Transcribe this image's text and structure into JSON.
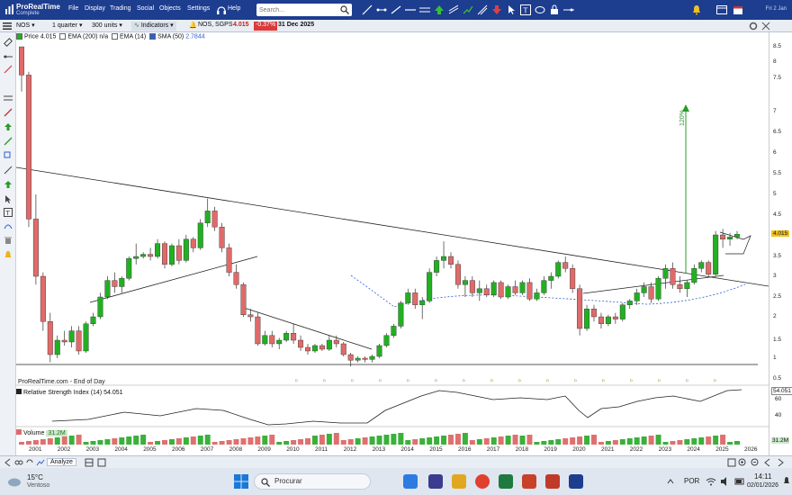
{
  "app": {
    "name": "ProRealTime",
    "edition": "Complete"
  },
  "menu": [
    "File",
    "Display",
    "Trading",
    "Social",
    "Objects",
    "Settings",
    "Help"
  ],
  "search": {
    "placeholder": "Search..."
  },
  "top_date": "Fri 2 Jan",
  "toolbar": {
    "ticker": "NOS",
    "period": "1 quarter",
    "units": "300 units",
    "indicators_label": "Indicators",
    "symbol": "NOS, SGPS",
    "price": "4.015",
    "change": "-0.37%",
    "date": "31 Dec 2025"
  },
  "legend": {
    "price_label": "Price",
    "price": "4.015",
    "ema200_label": "EMA (200)",
    "ema200": "n/a",
    "ema14_label": "EMA (14)",
    "sma50_label": "SMA (50)",
    "sma50": "2.7844"
  },
  "colors": {
    "up": "#22b022",
    "down": "#e06a6a",
    "accent": "#1d3d8f",
    "sma": "#2a5fd0",
    "rsi": "#222222"
  },
  "annotation": "120%",
  "source_text": "ProRealTime.com - End of Day",
  "rsi_label": "Relative Strength Index (14)",
  "rsi_value": "54.051",
  "rsi_axis": [
    "60",
    "40"
  ],
  "volume_label": "Volume",
  "volume_value": "31.2M",
  "status_tab": "Analyze",
  "price_axis": [
    "8.5",
    "8",
    "7.5",
    "7",
    "6.5",
    "6",
    "5.5",
    "5",
    "4.5",
    "4",
    "3.5",
    "3",
    "2.5",
    "2",
    "1.5",
    "1",
    "0.5"
  ],
  "price_tag": "4.015",
  "years": [
    "2001",
    "2002",
    "2003",
    "2004",
    "2005",
    "2006",
    "2007",
    "2008",
    "2009",
    "2010",
    "2011",
    "2012",
    "2013",
    "2014",
    "2015",
    "2016",
    "2017",
    "2018",
    "2019",
    "2020",
    "2021",
    "2022",
    "2023",
    "2024",
    "2025",
    "2026"
  ],
  "weather": {
    "temp": "15°C",
    "desc": "Ventoso"
  },
  "taskbar": {
    "search": "Procurar",
    "lang": "POR",
    "time": "14:11",
    "date": "02/01/2026"
  },
  "chart_data": {
    "type": "candlestick",
    "period": "quarterly",
    "series": [
      {
        "q": "2000Q4",
        "o": 8.8,
        "h": 9.0,
        "l": 7.3,
        "c": 7.6
      },
      {
        "q": "2001Q1",
        "o": 7.6,
        "h": 7.7,
        "l": 4.2,
        "c": 4.4
      },
      {
        "q": "2001Q2",
        "o": 4.4,
        "h": 5.0,
        "l": 2.8,
        "c": 3.0
      },
      {
        "q": "2001Q3",
        "o": 3.0,
        "h": 3.1,
        "l": 1.7,
        "c": 1.9
      },
      {
        "q": "2001Q4",
        "o": 1.9,
        "h": 2.1,
        "l": 0.9,
        "c": 1.1
      },
      {
        "q": "2002Q1",
        "o": 1.1,
        "h": 1.6,
        "l": 1.0,
        "c": 1.5
      },
      {
        "q": "2002Q2",
        "o": 1.5,
        "h": 1.7,
        "l": 1.35,
        "c": 1.45
      },
      {
        "q": "2002Q3",
        "o": 1.45,
        "h": 1.8,
        "l": 1.3,
        "c": 1.7
      },
      {
        "q": "2002Q4",
        "o": 1.7,
        "h": 1.8,
        "l": 1.1,
        "c": 1.2
      },
      {
        "q": "2003Q1",
        "o": 1.2,
        "h": 1.9,
        "l": 1.15,
        "c": 1.85
      },
      {
        "q": "2003Q2",
        "o": 1.85,
        "h": 2.1,
        "l": 1.8,
        "c": 2.0
      },
      {
        "q": "2003Q3",
        "o": 2.0,
        "h": 2.6,
        "l": 1.95,
        "c": 2.5
      },
      {
        "q": "2003Q4",
        "o": 2.5,
        "h": 3.0,
        "l": 2.45,
        "c": 2.9
      },
      {
        "q": "2004Q1",
        "o": 2.9,
        "h": 3.1,
        "l": 2.6,
        "c": 2.75
      },
      {
        "q": "2004Q2",
        "o": 2.75,
        "h": 3.0,
        "l": 2.6,
        "c": 2.95
      },
      {
        "q": "2004Q3",
        "o": 2.95,
        "h": 3.5,
        "l": 2.9,
        "c": 3.45
      },
      {
        "q": "2004Q4",
        "o": 3.45,
        "h": 3.8,
        "l": 3.3,
        "c": 3.5
      },
      {
        "q": "2005Q1",
        "o": 3.5,
        "h": 3.6,
        "l": 3.45,
        "c": 3.55
      },
      {
        "q": "2005Q2",
        "o": 3.55,
        "h": 3.7,
        "l": 3.4,
        "c": 3.5
      },
      {
        "q": "2005Q3",
        "o": 3.5,
        "h": 3.9,
        "l": 3.45,
        "c": 3.8
      },
      {
        "q": "2005Q4",
        "o": 3.8,
        "h": 3.85,
        "l": 3.2,
        "c": 3.3
      },
      {
        "q": "2006Q1",
        "o": 3.3,
        "h": 3.8,
        "l": 3.25,
        "c": 3.75
      },
      {
        "q": "2006Q2",
        "o": 3.75,
        "h": 3.9,
        "l": 3.3,
        "c": 3.4
      },
      {
        "q": "2006Q3",
        "o": 3.4,
        "h": 4.0,
        "l": 3.35,
        "c": 3.9
      },
      {
        "q": "2006Q4",
        "o": 3.9,
        "h": 3.95,
        "l": 3.6,
        "c": 3.7
      },
      {
        "q": "2007Q1",
        "o": 3.7,
        "h": 4.4,
        "l": 3.65,
        "c": 4.3
      },
      {
        "q": "2007Q2",
        "o": 4.3,
        "h": 4.9,
        "l": 4.2,
        "c": 4.6
      },
      {
        "q": "2007Q3",
        "o": 4.6,
        "h": 4.7,
        "l": 4.1,
        "c": 4.2
      },
      {
        "q": "2007Q4",
        "o": 4.2,
        "h": 4.3,
        "l": 3.6,
        "c": 3.7
      },
      {
        "q": "2008Q1",
        "o": 3.7,
        "h": 3.8,
        "l": 3.0,
        "c": 3.1
      },
      {
        "q": "2008Q2",
        "o": 3.1,
        "h": 3.3,
        "l": 2.7,
        "c": 2.8
      },
      {
        "q": "2008Q3",
        "o": 2.8,
        "h": 2.85,
        "l": 2.0,
        "c": 2.05
      },
      {
        "q": "2008Q4",
        "o": 2.05,
        "h": 2.2,
        "l": 1.9,
        "c": 2.0
      },
      {
        "q": "2009Q1",
        "o": 2.0,
        "h": 2.1,
        "l": 1.35,
        "c": 1.4
      },
      {
        "q": "2009Q2",
        "o": 1.4,
        "h": 1.7,
        "l": 1.35,
        "c": 1.6
      },
      {
        "q": "2009Q3",
        "o": 1.6,
        "h": 1.7,
        "l": 1.3,
        "c": 1.4
      },
      {
        "q": "2009Q4",
        "o": 1.4,
        "h": 1.55,
        "l": 1.25,
        "c": 1.5
      },
      {
        "q": "2010Q1",
        "o": 1.5,
        "h": 1.7,
        "l": 1.45,
        "c": 1.65
      },
      {
        "q": "2010Q2",
        "o": 1.65,
        "h": 1.85,
        "l": 1.4,
        "c": 1.5
      },
      {
        "q": "2010Q3",
        "o": 1.5,
        "h": 1.6,
        "l": 1.2,
        "c": 1.3
      },
      {
        "q": "2010Q4",
        "o": 1.3,
        "h": 1.4,
        "l": 1.1,
        "c": 1.2
      },
      {
        "q": "2011Q1",
        "o": 1.2,
        "h": 1.4,
        "l": 1.15,
        "c": 1.35
      },
      {
        "q": "2011Q2",
        "o": 1.35,
        "h": 1.4,
        "l": 1.2,
        "c": 1.25
      },
      {
        "q": "2011Q3",
        "o": 1.25,
        "h": 1.6,
        "l": 1.2,
        "c": 1.5
      },
      {
        "q": "2011Q4",
        "o": 1.5,
        "h": 1.6,
        "l": 1.3,
        "c": 1.4
      },
      {
        "q": "2012Q1",
        "o": 1.4,
        "h": 1.45,
        "l": 1.05,
        "c": 1.1
      },
      {
        "q": "2012Q2",
        "o": 1.1,
        "h": 1.15,
        "l": 0.8,
        "c": 0.95
      },
      {
        "q": "2012Q3",
        "o": 0.95,
        "h": 1.05,
        "l": 0.9,
        "c": 1.0
      },
      {
        "q": "2012Q4",
        "o": 1.0,
        "h": 1.05,
        "l": 0.9,
        "c": 0.97
      },
      {
        "q": "2013Q1",
        "o": 0.97,
        "h": 1.1,
        "l": 0.9,
        "c": 1.05
      },
      {
        "q": "2013Q2",
        "o": 1.05,
        "h": 1.4,
        "l": 1.0,
        "c": 1.35
      },
      {
        "q": "2013Q3",
        "o": 1.35,
        "h": 1.65,
        "l": 1.3,
        "c": 1.6
      },
      {
        "q": "2013Q4",
        "o": 1.6,
        "h": 1.85,
        "l": 1.55,
        "c": 1.8
      },
      {
        "q": "2014Q1",
        "o": 1.8,
        "h": 2.4,
        "l": 1.75,
        "c": 2.35
      },
      {
        "q": "2014Q2",
        "o": 2.35,
        "h": 2.7,
        "l": 2.3,
        "c": 2.6
      },
      {
        "q": "2014Q3",
        "o": 2.6,
        "h": 2.7,
        "l": 2.2,
        "c": 2.3
      },
      {
        "q": "2014Q4",
        "o": 2.3,
        "h": 2.5,
        "l": 1.95,
        "c": 2.4
      },
      {
        "q": "2015Q1",
        "o": 2.4,
        "h": 3.2,
        "l": 2.35,
        "c": 3.1
      },
      {
        "q": "2015Q2",
        "o": 3.1,
        "h": 3.5,
        "l": 3.0,
        "c": 3.4
      },
      {
        "q": "2015Q3",
        "o": 3.4,
        "h": 3.85,
        "l": 3.2,
        "c": 3.5
      },
      {
        "q": "2015Q4",
        "o": 3.5,
        "h": 3.6,
        "l": 3.2,
        "c": 3.3
      },
      {
        "q": "2016Q1",
        "o": 3.3,
        "h": 3.4,
        "l": 2.7,
        "c": 2.8
      },
      {
        "q": "2016Q2",
        "o": 2.8,
        "h": 3.0,
        "l": 2.5,
        "c": 2.9
      },
      {
        "q": "2016Q3",
        "o": 2.9,
        "h": 3.0,
        "l": 2.5,
        "c": 2.6
      },
      {
        "q": "2016Q4",
        "o": 2.6,
        "h": 2.9,
        "l": 2.4,
        "c": 2.7
      },
      {
        "q": "2017Q1",
        "o": 2.7,
        "h": 2.8,
        "l": 2.5,
        "c": 2.55
      },
      {
        "q": "2017Q2",
        "o": 2.55,
        "h": 2.9,
        "l": 2.5,
        "c": 2.85
      },
      {
        "q": "2017Q3",
        "o": 2.85,
        "h": 2.9,
        "l": 2.45,
        "c": 2.5
      },
      {
        "q": "2017Q4",
        "o": 2.5,
        "h": 2.8,
        "l": 2.45,
        "c": 2.75
      },
      {
        "q": "2018Q1",
        "o": 2.75,
        "h": 2.9,
        "l": 2.55,
        "c": 2.6
      },
      {
        "q": "2018Q2",
        "o": 2.6,
        "h": 2.9,
        "l": 2.55,
        "c": 2.85
      },
      {
        "q": "2018Q3",
        "o": 2.85,
        "h": 2.95,
        "l": 2.4,
        "c": 2.45
      },
      {
        "q": "2018Q4",
        "o": 2.45,
        "h": 2.7,
        "l": 2.4,
        "c": 2.6
      },
      {
        "q": "2019Q1",
        "o": 2.6,
        "h": 3.0,
        "l": 2.55,
        "c": 2.9
      },
      {
        "q": "2019Q2",
        "o": 2.9,
        "h": 3.1,
        "l": 2.7,
        "c": 3.0
      },
      {
        "q": "2019Q3",
        "o": 3.0,
        "h": 3.4,
        "l": 2.95,
        "c": 3.35
      },
      {
        "q": "2019Q4",
        "o": 3.35,
        "h": 3.5,
        "l": 3.1,
        "c": 3.2
      },
      {
        "q": "2020Q1",
        "o": 3.2,
        "h": 3.3,
        "l": 2.6,
        "c": 2.7
      },
      {
        "q": "2020Q2",
        "o": 2.7,
        "h": 2.8,
        "l": 1.6,
        "c": 1.75
      },
      {
        "q": "2020Q3",
        "o": 1.75,
        "h": 2.3,
        "l": 1.7,
        "c": 2.2
      },
      {
        "q": "2020Q4",
        "o": 2.2,
        "h": 2.3,
        "l": 1.9,
        "c": 2.0
      },
      {
        "q": "2021Q1",
        "o": 2.0,
        "h": 2.1,
        "l": 1.75,
        "c": 1.85
      },
      {
        "q": "2021Q2",
        "o": 1.85,
        "h": 2.05,
        "l": 1.8,
        "c": 2.0
      },
      {
        "q": "2021Q3",
        "o": 2.0,
        "h": 2.1,
        "l": 1.85,
        "c": 1.95
      },
      {
        "q": "2021Q4",
        "o": 1.95,
        "h": 2.35,
        "l": 1.9,
        "c": 2.3
      },
      {
        "q": "2022Q1",
        "o": 2.3,
        "h": 2.45,
        "l": 2.2,
        "c": 2.4
      },
      {
        "q": "2022Q2",
        "o": 2.4,
        "h": 2.7,
        "l": 2.3,
        "c": 2.6
      },
      {
        "q": "2022Q3",
        "o": 2.6,
        "h": 2.85,
        "l": 2.5,
        "c": 2.75
      },
      {
        "q": "2022Q4",
        "o": 2.75,
        "h": 2.85,
        "l": 2.35,
        "c": 2.45
      },
      {
        "q": "2023Q1",
        "o": 2.45,
        "h": 3.0,
        "l": 2.4,
        "c": 2.95
      },
      {
        "q": "2023Q2",
        "o": 2.95,
        "h": 3.3,
        "l": 2.7,
        "c": 3.2
      },
      {
        "q": "2023Q3",
        "o": 3.2,
        "h": 3.35,
        "l": 2.7,
        "c": 2.8
      },
      {
        "q": "2023Q4",
        "o": 2.8,
        "h": 3.0,
        "l": 2.6,
        "c": 2.7
      },
      {
        "q": "2024Q1",
        "o": 2.7,
        "h": 2.9,
        "l": 2.5,
        "c": 2.85
      },
      {
        "q": "2024Q2",
        "o": 2.85,
        "h": 3.3,
        "l": 2.8,
        "c": 3.2
      },
      {
        "q": "2024Q3",
        "o": 3.2,
        "h": 3.4,
        "l": 3.1,
        "c": 3.35
      },
      {
        "q": "2024Q4",
        "o": 3.35,
        "h": 3.4,
        "l": 3.0,
        "c": 3.05
      },
      {
        "q": "2025Q1",
        "o": 3.05,
        "h": 4.1,
        "l": 3.0,
        "c": 4.0
      },
      {
        "q": "2025Q2",
        "o": 4.0,
        "h": 4.15,
        "l": 3.7,
        "c": 3.9
      },
      {
        "q": "2025Q3",
        "o": 3.9,
        "h": 4.05,
        "l": 3.75,
        "c": 3.95
      },
      {
        "q": "2025Q4",
        "o": 3.95,
        "h": 4.1,
        "l": 3.9,
        "c": 4.015
      }
    ]
  }
}
